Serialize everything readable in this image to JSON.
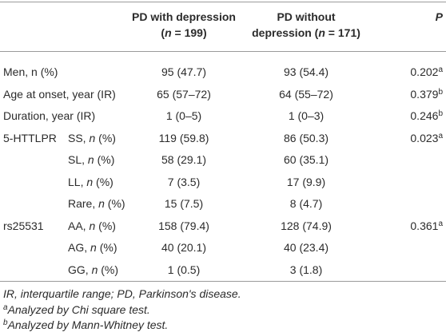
{
  "header": {
    "columns": [
      [
        [
          {
            "text": "PD with depression"
          }
        ],
        [
          {
            "text": "("
          },
          {
            "text": "n",
            "italic": true
          },
          {
            "text": " = 199)"
          }
        ]
      ],
      [
        [
          {
            "text": "PD without"
          }
        ],
        [
          {
            "text": "depression ("
          },
          {
            "text": "n",
            "italic": true
          },
          {
            "text": " = 171)"
          }
        ]
      ],
      [
        [
          {
            "text": "P",
            "italic": true
          }
        ]
      ]
    ]
  },
  "table": {
    "rows": [
      {
        "group": [
          {
            "text": "Men, n (%)"
          }
        ],
        "with": "95 (47.7)",
        "without": "93 (54.4)",
        "p": "0.202",
        "p_note": "a"
      },
      {
        "group": [
          {
            "text": "Age at onset, year (IR)"
          }
        ],
        "with": "65 (57–72)",
        "without": "64 (55–72)",
        "p": "0.379",
        "p_note": "b"
      },
      {
        "group": [
          {
            "text": "Duration, year (IR)"
          }
        ],
        "with": "1 (0–5)",
        "without": "1 (0–3)",
        "p": "0.246",
        "p_note": "b"
      },
      {
        "group": [
          {
            "text": "5-HTTLPR"
          }
        ],
        "label": [
          {
            "text": "SS, "
          },
          {
            "text": "n",
            "italic": true
          },
          {
            "text": " (%)"
          }
        ],
        "with": "119 (59.8)",
        "without": "86 (50.3)",
        "p": "0.023",
        "p_note": "a"
      },
      {
        "label": [
          {
            "text": "SL, "
          },
          {
            "text": "n",
            "italic": true
          },
          {
            "text": " (%)"
          }
        ],
        "with": "58 (29.1)",
        "without": "60 (35.1)"
      },
      {
        "label": [
          {
            "text": "LL, "
          },
          {
            "text": "n",
            "italic": true
          },
          {
            "text": " (%)"
          }
        ],
        "with": "7 (3.5)",
        "without": "17 (9.9)"
      },
      {
        "label": [
          {
            "text": "Rare, "
          },
          {
            "text": "n",
            "italic": true
          },
          {
            "text": " (%)"
          }
        ],
        "with": "15 (7.5)",
        "without": "8 (4.7)"
      },
      {
        "group": [
          {
            "text": "rs25531"
          }
        ],
        "label": [
          {
            "text": "AA, "
          },
          {
            "text": "n",
            "italic": true
          },
          {
            "text": " (%)"
          }
        ],
        "with": "158 (79.4)",
        "without": "128 (74.9)",
        "p": "0.361",
        "p_note": "a"
      },
      {
        "label": [
          {
            "text": "AG, "
          },
          {
            "text": "n",
            "italic": true
          },
          {
            "text": " (%)"
          }
        ],
        "with": "40 (20.1)",
        "without": "40 (23.4)"
      },
      {
        "label": [
          {
            "text": "GG, "
          },
          {
            "text": "n",
            "italic": true
          },
          {
            "text": " (%)"
          }
        ],
        "with": "1 (0.5)",
        "without": "3 (1.8)"
      }
    ]
  },
  "footnotes": [
    [
      {
        "text": "IR, interquartile range; PD, Parkinson's disease.",
        "italic": true
      }
    ],
    [
      {
        "text": "a",
        "italic": true,
        "sup": true
      },
      {
        "text": "Analyzed by Chi square test.",
        "italic": true
      }
    ],
    [
      {
        "text": "b",
        "italic": true,
        "sup": true
      },
      {
        "text": "Analyzed by Mann-Whitney test.",
        "italic": true
      }
    ]
  ]
}
